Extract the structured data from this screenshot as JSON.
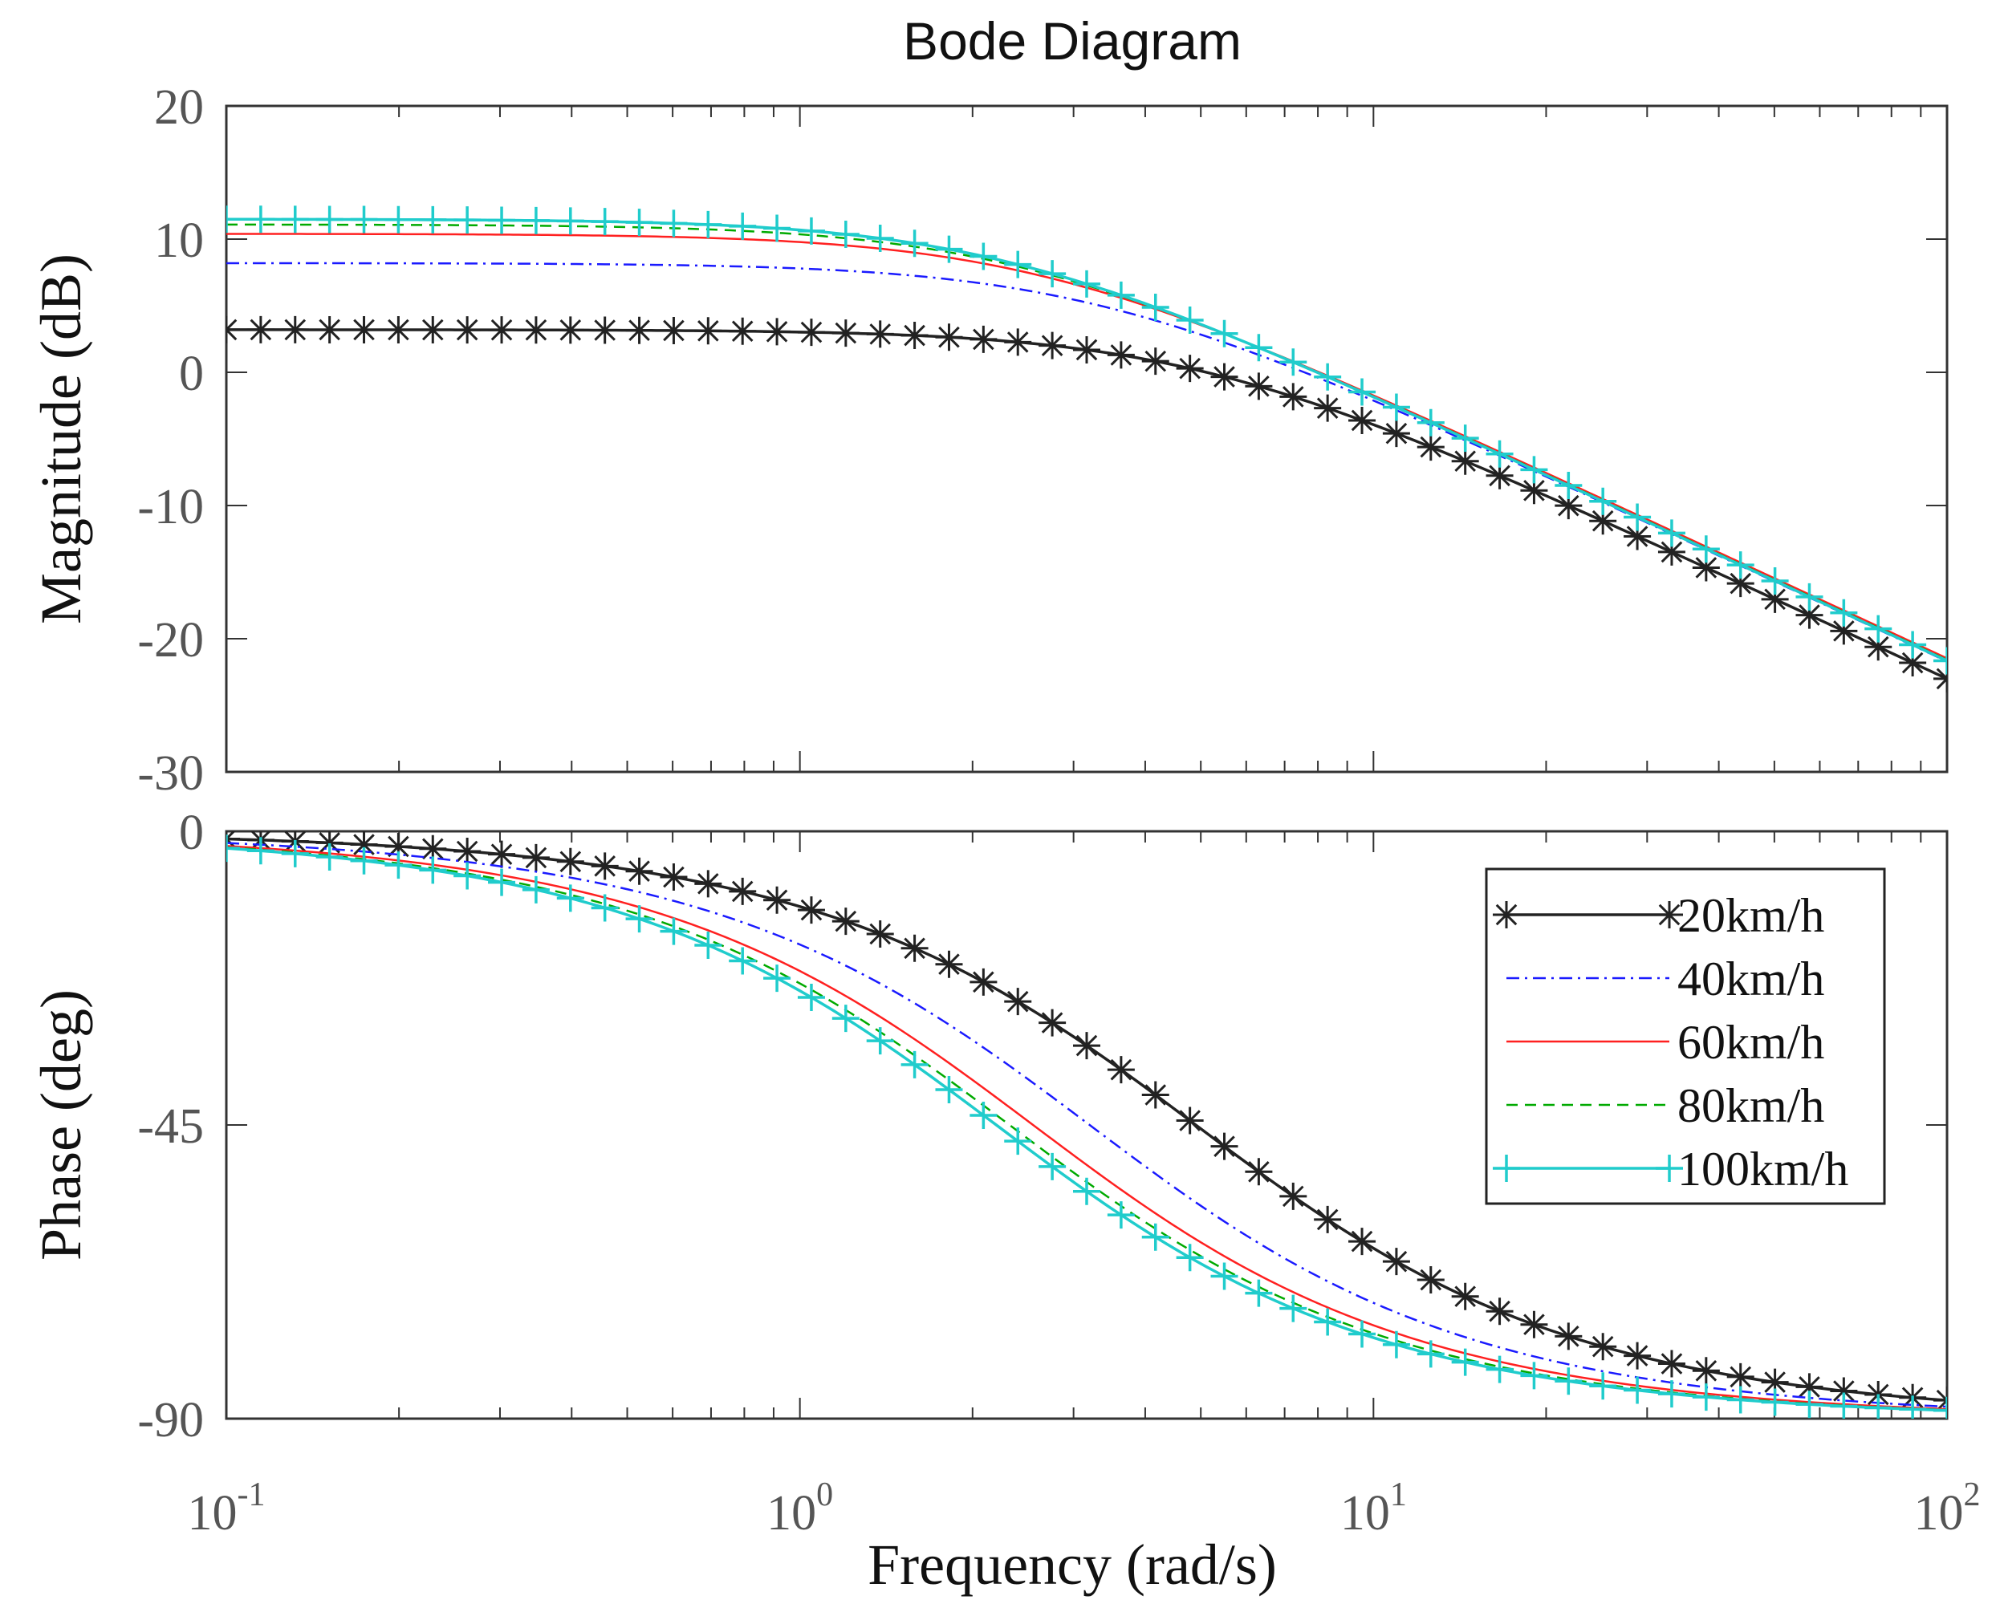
{
  "chart_data": {
    "type": "line",
    "title": "Bode Diagram",
    "xlabel": "Frequency  (rad/s)",
    "xscale": "log",
    "xlim": [
      0.1,
      100
    ],
    "x_ticks": [
      {
        "value": 0.1,
        "base": "10",
        "exp": "-1"
      },
      {
        "value": 1,
        "base": "10",
        "exp": "0"
      },
      {
        "value": 10,
        "base": "10",
        "exp": "1"
      },
      {
        "value": 100,
        "base": "10",
        "exp": "2"
      }
    ],
    "magnitude": {
      "ylabel": "Magnitude (dB)",
      "ylim": [
        -30,
        20
      ],
      "y_ticks": [
        "20",
        "10",
        "0",
        "-10",
        "-20",
        "-30"
      ],
      "y_tick_values": [
        20,
        10,
        0,
        -10,
        -20,
        -30
      ]
    },
    "phase": {
      "ylabel": "Phase (deg)",
      "ylim": [
        -90,
        0
      ],
      "y_ticks": [
        "0",
        "-45",
        "-90"
      ],
      "y_tick_values": [
        0,
        -45,
        -90
      ]
    },
    "legend_position": "top-right of phase plot",
    "series": [
      {
        "name": "20km/h",
        "color": "#222222",
        "style": "solid",
        "marker": "asterisk",
        "dc_gain_db": 3.2,
        "corner_rad_s": 4.9
      },
      {
        "name": "40km/h",
        "color": "#1a1aff",
        "style": "dashdot",
        "marker": "none",
        "dc_gain_db": 8.2,
        "corner_rad_s": 3.2
      },
      {
        "name": "60km/h",
        "color": "#ff2020",
        "style": "solid",
        "marker": "none",
        "dc_gain_db": 10.4,
        "corner_rad_s": 2.55
      },
      {
        "name": "80km/h",
        "color": "#00aa00",
        "style": "dashed",
        "marker": "none",
        "dc_gain_db": 11.1,
        "corner_rad_s": 2.32
      },
      {
        "name": "100km/h",
        "color": "#20cccc",
        "style": "solid",
        "marker": "plus",
        "dc_gain_db": 11.5,
        "corner_rad_s": 2.2
      }
    ]
  }
}
